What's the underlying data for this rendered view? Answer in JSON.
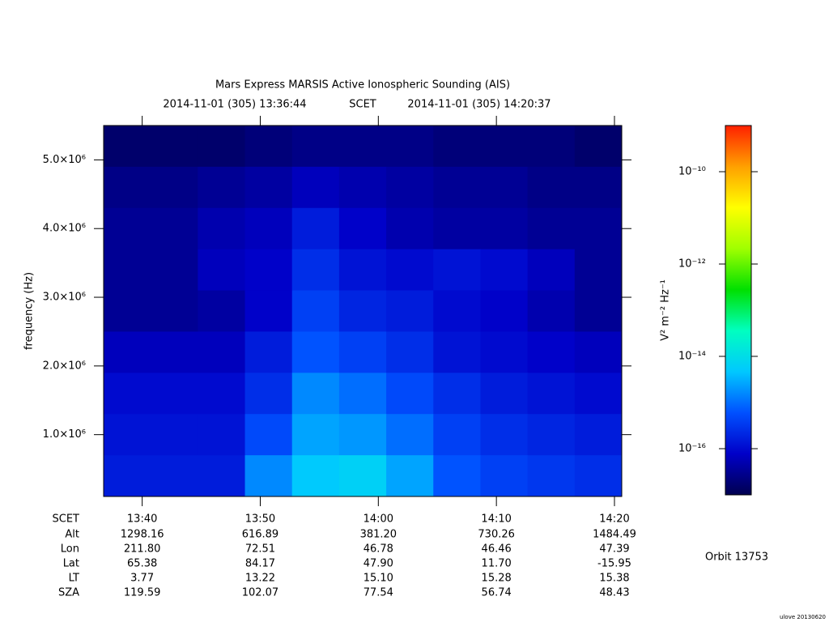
{
  "chart_data": {
    "type": "heatmap",
    "title": "Mars Express MARSIS Active Ionospheric Sounding (AIS)",
    "start_label": "2014-11-01 (305) 13:36:44",
    "time_label": "SCET",
    "end_label": "2014-11-01 (305) 14:20:37",
    "ylabel": "frequency (Hz)",
    "colorbar_label": "V² m⁻² Hz⁻¹",
    "orbit": "Orbit 13753",
    "footer": "ulove 20130620",
    "xlim": [
      "13:36:44",
      "14:20:37"
    ],
    "xticks": [
      "13:40",
      "13:50",
      "14:00",
      "14:10",
      "14:20"
    ],
    "ylim": [
      100000,
      5500000
    ],
    "yticks": [
      {
        "value": 1000000,
        "label": "1.0×10⁶"
      },
      {
        "value": 2000000,
        "label": "2.0×10⁶"
      },
      {
        "value": 3000000,
        "label": "3.0×10⁶"
      },
      {
        "value": 4000000,
        "label": "4.0×10⁶"
      },
      {
        "value": 5000000,
        "label": "5.0×10⁶"
      }
    ],
    "zlim": [
      -17,
      -9
    ],
    "zticks": [
      {
        "value": -16,
        "label": "10⁻¹⁶"
      },
      {
        "value": -14,
        "label": "10⁻¹⁴"
      },
      {
        "value": -12,
        "label": "10⁻¹²"
      },
      {
        "value": -10,
        "label": "10⁻¹⁰"
      }
    ],
    "colormap": [
      "#000050",
      "#0000c8",
      "#0050ff",
      "#00c8ff",
      "#00ffc0",
      "#00e000",
      "#a0ff00",
      "#ffff00",
      "#ffa000",
      "#ff2000"
    ],
    "z": [
      [
        -16.8,
        -16.8,
        -16.8,
        -16.7,
        -16.6,
        -16.6,
        -16.6,
        -16.7,
        -16.7,
        -16.7,
        -16.8
      ],
      [
        -16.6,
        -16.6,
        -16.5,
        -16.4,
        -16.2,
        -16.3,
        -16.4,
        -16.5,
        -16.5,
        -16.6,
        -16.6
      ],
      [
        -16.5,
        -16.5,
        -16.3,
        -16.2,
        -15.8,
        -16.1,
        -16.3,
        -16.4,
        -16.4,
        -16.5,
        -16.5
      ],
      [
        -16.5,
        -16.5,
        -16.2,
        -16.1,
        -15.6,
        -15.9,
        -16.0,
        -15.9,
        -16.0,
        -16.2,
        -16.5
      ],
      [
        -16.5,
        -16.5,
        -16.4,
        -16.1,
        -15.4,
        -15.7,
        -15.8,
        -16.0,
        -16.1,
        -16.3,
        -16.5
      ],
      [
        -16.2,
        -16.2,
        -16.2,
        -15.8,
        -15.2,
        -15.4,
        -15.6,
        -15.9,
        -16.0,
        -16.1,
        -16.2
      ],
      [
        -16.0,
        -16.0,
        -16.0,
        -15.6,
        -14.8,
        -15.0,
        -15.3,
        -15.6,
        -15.8,
        -15.9,
        -16.0
      ],
      [
        -15.9,
        -15.9,
        -15.9,
        -15.3,
        -14.6,
        -14.7,
        -15.0,
        -15.4,
        -15.6,
        -15.7,
        -15.8
      ],
      [
        -15.8,
        -15.8,
        -15.8,
        -14.8,
        -14.3,
        -14.2,
        -14.6,
        -15.2,
        -15.4,
        -15.5,
        -15.6
      ]
    ],
    "ephemeris": [
      {
        "label": "Alt",
        "values": [
          "1298.16",
          "616.89",
          "381.20",
          "730.26",
          "1484.49"
        ]
      },
      {
        "label": "Lon",
        "values": [
          "211.80",
          "72.51",
          "46.78",
          "46.46",
          "47.39"
        ]
      },
      {
        "label": "Lat",
        "values": [
          "65.38",
          "84.17",
          "47.90",
          "11.70",
          "-15.95"
        ]
      },
      {
        "label": "LT",
        "values": [
          "3.77",
          "13.22",
          "15.10",
          "15.28",
          "15.38"
        ]
      },
      {
        "label": "SZA",
        "values": [
          "119.59",
          "102.07",
          "77.54",
          "56.74",
          "48.43"
        ]
      }
    ]
  }
}
